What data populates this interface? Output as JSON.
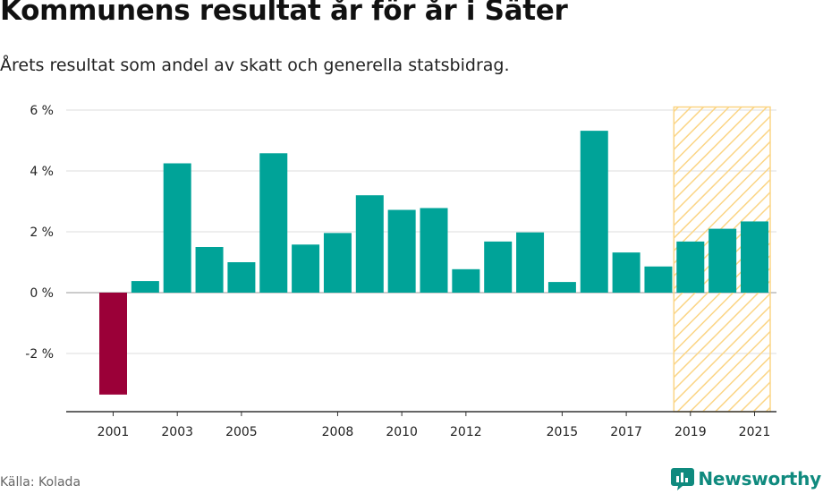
{
  "title": "Kommunens resultat år för år i Säter",
  "subtitle": "Årets resultat som andel av skatt och generella statsbidrag.",
  "source": "Källa: Kolada",
  "logo_text": "Newsworthy",
  "logo_icon": "newsworthy-logo-icon",
  "colors": {
    "positive": "#00a398",
    "negative": "#9b0038",
    "forecast_hatch": "#fbd585",
    "logo": "#0f8a7e"
  },
  "chart_data": {
    "type": "bar",
    "categories": [
      "2001",
      "2002",
      "2003",
      "2004",
      "2005",
      "2006",
      "2007",
      "2008",
      "2009",
      "2010",
      "2011",
      "2012",
      "2013",
      "2014",
      "2015",
      "2016",
      "2017",
      "2018",
      "2019",
      "2020",
      "2021"
    ],
    "values": [
      -3.35,
      0.38,
      4.25,
      1.5,
      1.0,
      4.58,
      1.58,
      1.96,
      3.2,
      2.72,
      2.78,
      0.77,
      1.68,
      1.98,
      0.35,
      5.32,
      1.32,
      0.86,
      1.68,
      2.1,
      2.34
    ],
    "x_tick_labels": [
      "2001",
      "2003",
      "2005",
      "2008",
      "2010",
      "2012",
      "2015",
      "2017",
      "2019",
      "2021"
    ],
    "y_ticks": [
      6,
      4,
      2,
      0,
      -2
    ],
    "y_tick_labels": [
      "6 %",
      "4 %",
      "2 %",
      "0 %",
      "-2 %"
    ],
    "ylim": [
      -3.9,
      6.1
    ],
    "forecast_range": [
      "2019",
      "2021"
    ],
    "grid": true,
    "xlabel": "",
    "ylabel": ""
  }
}
